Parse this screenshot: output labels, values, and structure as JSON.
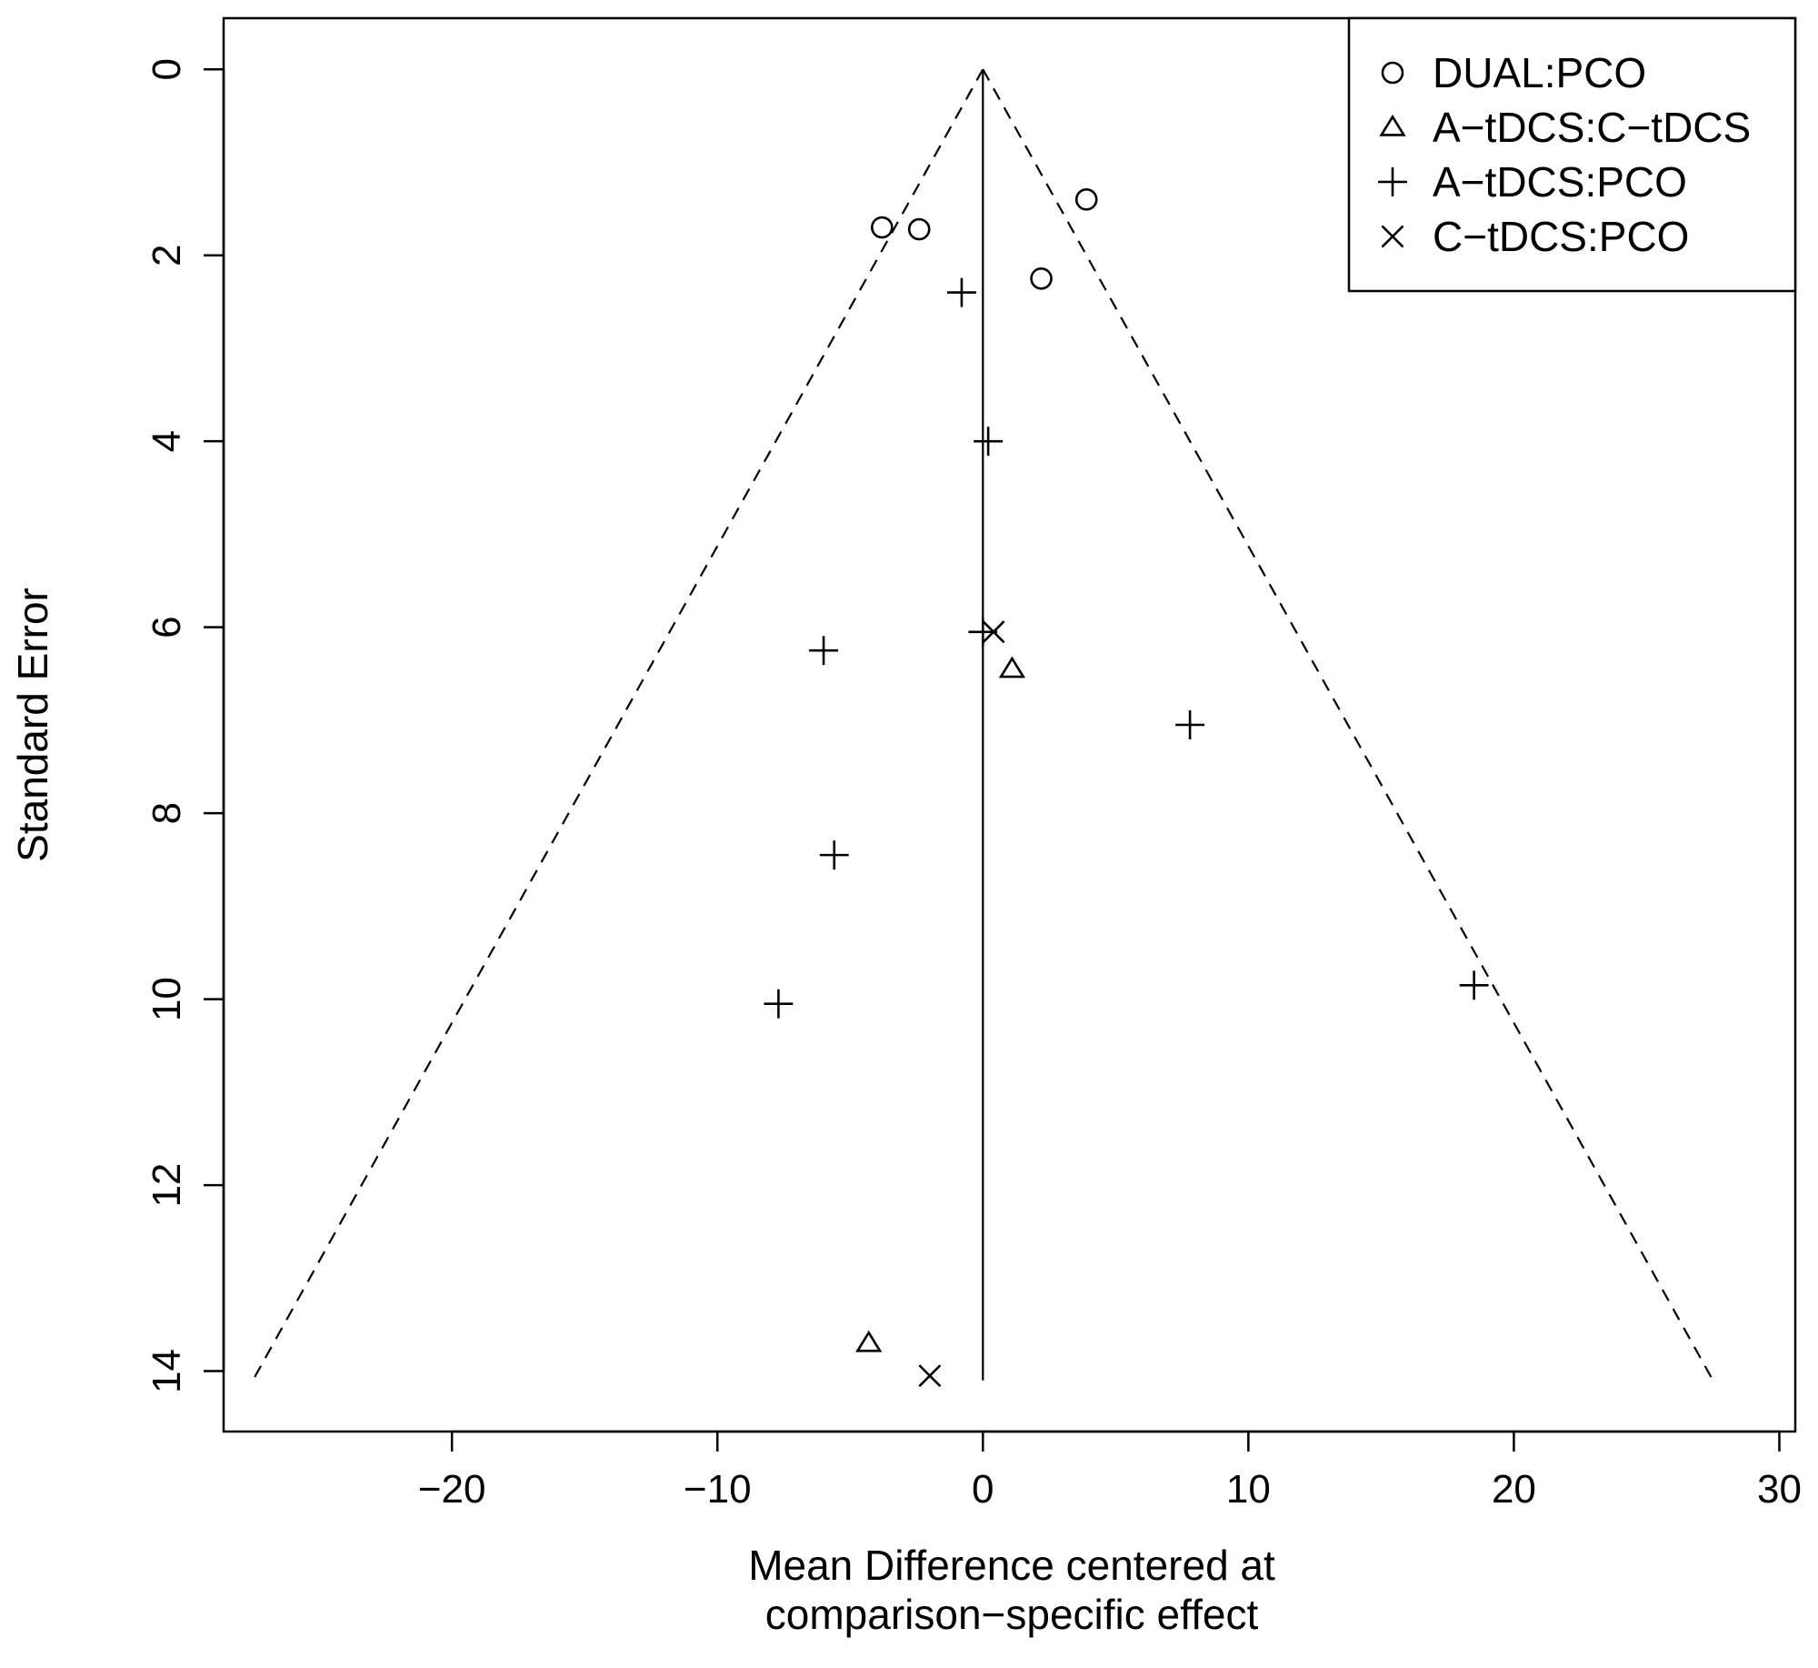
{
  "chart_data": {
    "type": "scatter",
    "title": "",
    "xlabel_lines": [
      "Mean Difference centered at",
      "comparison−specific effect"
    ],
    "ylabel": "Standard Error",
    "xlim": [
      -28.6,
      30.6
    ],
    "ylim": [
      14.65,
      -0.55
    ],
    "y_reversed": true,
    "grid": false,
    "x_ticks": [
      -20,
      -10,
      0,
      10,
      20,
      30
    ],
    "x_tick_labels": [
      "−20",
      "−10",
      "0",
      "10",
      "20",
      "30"
    ],
    "y_ticks": [
      0,
      2,
      4,
      6,
      8,
      10,
      12,
      14
    ],
    "y_tick_labels": [
      "0",
      "2",
      "4",
      "6",
      "8",
      "10",
      "12",
      "14"
    ],
    "funnel": {
      "apex": [
        0,
        0
      ],
      "bottom_se": 14.1,
      "left_bottom_x": -27.5,
      "right_bottom_x": 27.5,
      "line_style": "dashed"
    },
    "center_line": {
      "x": 0,
      "from_se": 0,
      "to_se": 14.1,
      "line_style": "solid"
    },
    "legend": {
      "position": "top-right",
      "entries": [
        {
          "label": "DUAL:PCO",
          "marker": "circle"
        },
        {
          "label": "A−tDCS:C−tDCS",
          "marker": "triangle"
        },
        {
          "label": "A−tDCS:PCO",
          "marker": "plus"
        },
        {
          "label": "C−tDCS:PCO",
          "marker": "cross"
        }
      ]
    },
    "series": [
      {
        "name": "DUAL:PCO",
        "marker": "circle",
        "points": [
          [
            -3.8,
            1.7
          ],
          [
            -2.4,
            1.72
          ],
          [
            3.9,
            1.4
          ],
          [
            2.2,
            2.25
          ]
        ]
      },
      {
        "name": "A−tDCS:C−tDCS",
        "marker": "triangle",
        "points": [
          [
            1.1,
            6.45
          ],
          [
            -4.3,
            13.7
          ]
        ]
      },
      {
        "name": "A−tDCS:PCO",
        "marker": "plus",
        "points": [
          [
            -0.8,
            2.4
          ],
          [
            0.2,
            4.0
          ],
          [
            0.0,
            6.05
          ],
          [
            -6.0,
            6.25
          ],
          [
            7.8,
            7.05
          ],
          [
            -5.6,
            8.45
          ],
          [
            -7.7,
            10.05
          ],
          [
            18.5,
            9.85
          ]
        ]
      },
      {
        "name": "C−tDCS:PCO",
        "marker": "cross",
        "points": [
          [
            0.4,
            6.05
          ],
          [
            -2.0,
            14.05
          ]
        ]
      }
    ]
  }
}
